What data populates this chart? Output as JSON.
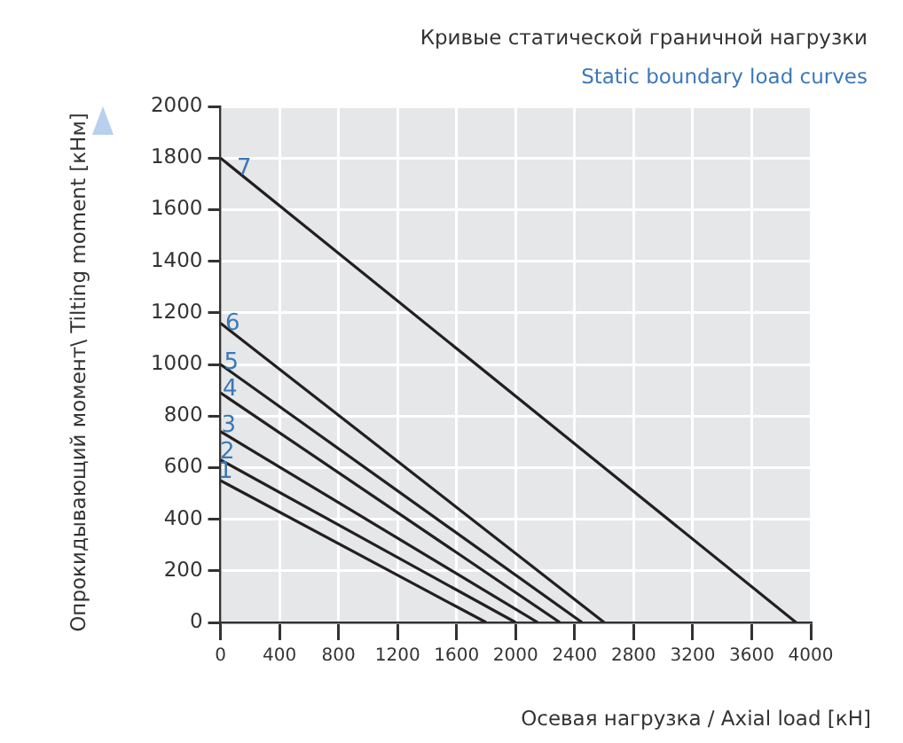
{
  "chart_data": {
    "type": "line",
    "title": "Кривые статической граничной нагрузки",
    "subtitle": "Static boundary load curves",
    "xlabel": "Осевая нагрузка / Axial load [кН]",
    "ylabel": "Опрокидывающий момент\\ Tilting moment [кНм]",
    "xlim": [
      0,
      4000
    ],
    "xticks": [
      0,
      400,
      800,
      1200,
      1600,
      2000,
      2400,
      2800,
      3200,
      3600,
      4000
    ],
    "ylim": [
      0,
      2000
    ],
    "yticks": [
      0,
      200,
      400,
      600,
      800,
      1000,
      1200,
      1400,
      1600,
      1800,
      2000
    ],
    "grid": true,
    "marker": "none",
    "line_style": "solid",
    "series": [
      {
        "name": "1",
        "color": "#231f20",
        "x": [
          0,
          1800
        ],
        "values": [
          550,
          0
        ]
      },
      {
        "name": "2",
        "color": "#231f20",
        "x": [
          0,
          2000
        ],
        "values": [
          630,
          0
        ]
      },
      {
        "name": "3",
        "color": "#231f20",
        "x": [
          0,
          2150
        ],
        "values": [
          740,
          0
        ]
      },
      {
        "name": "4",
        "color": "#231f20",
        "x": [
          0,
          2300
        ],
        "values": [
          890,
          0
        ]
      },
      {
        "name": "5",
        "color": "#231f20",
        "x": [
          0,
          2450
        ],
        "values": [
          1000,
          0
        ]
      },
      {
        "name": "6",
        "color": "#231f20",
        "x": [
          0,
          2600
        ],
        "values": [
          1160,
          0
        ]
      },
      {
        "name": "7",
        "color": "#231f20",
        "x": [
          0,
          3900
        ],
        "values": [
          1800,
          0
        ]
      }
    ]
  }
}
